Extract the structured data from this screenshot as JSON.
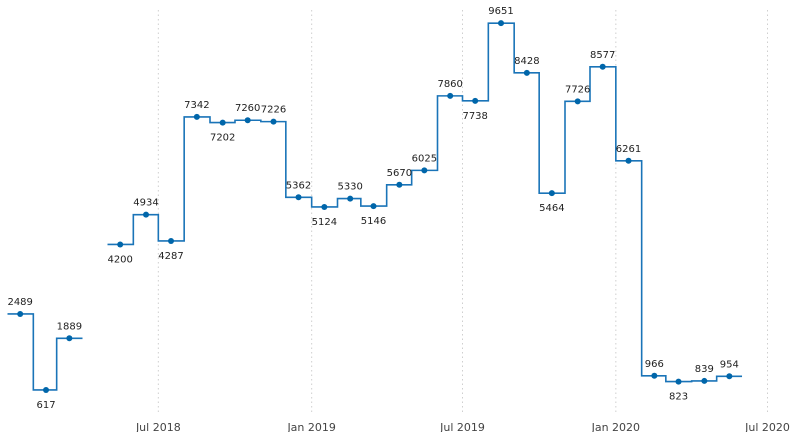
{
  "chart_data": {
    "type": "line",
    "step": true,
    "title": "",
    "xlabel": "",
    "ylabel": "",
    "grid": "vertical-dotted",
    "legend": "none",
    "series_color": "#1a74b8",
    "marker_color": "#0066aa",
    "x_ticks": [
      {
        "date": "2018-07-01",
        "label": "Jul 2018"
      },
      {
        "date": "2019-01-01",
        "label": "Jan 2019"
      },
      {
        "date": "2019-07-01",
        "label": "Jul 2019"
      },
      {
        "date": "2020-01-01",
        "label": "Jan 2020"
      },
      {
        "date": "2020-07-01",
        "label": "Jul 2020"
      }
    ],
    "xlim": [
      "2018-01-01",
      "2020-07-01"
    ],
    "ylim": [
      0,
      10000
    ],
    "points": [
      {
        "x": "2018-01-01",
        "y": 2489
      },
      {
        "x": "2018-02-01",
        "y": 617
      },
      {
        "x": "2018-03-01",
        "y": 1889
      },
      {
        "x": "2018-04-01",
        "y": null
      },
      {
        "x": "2018-05-01",
        "y": 4200
      },
      {
        "x": "2018-06-01",
        "y": 4934
      },
      {
        "x": "2018-07-01",
        "y": 4287
      },
      {
        "x": "2018-08-01",
        "y": 7342
      },
      {
        "x": "2018-09-01",
        "y": 7202
      },
      {
        "x": "2018-10-01",
        "y": 7260
      },
      {
        "x": "2018-11-01",
        "y": 7226
      },
      {
        "x": "2018-12-01",
        "y": 5362
      },
      {
        "x": "2019-01-01",
        "y": 5124
      },
      {
        "x": "2019-02-01",
        "y": 5330
      },
      {
        "x": "2019-03-01",
        "y": 5146
      },
      {
        "x": "2019-04-01",
        "y": 5670
      },
      {
        "x": "2019-05-01",
        "y": 6025
      },
      {
        "x": "2019-06-01",
        "y": 7860
      },
      {
        "x": "2019-07-01",
        "y": 7738
      },
      {
        "x": "2019-08-01",
        "y": 9651
      },
      {
        "x": "2019-09-01",
        "y": 8428
      },
      {
        "x": "2019-10-01",
        "y": 5464
      },
      {
        "x": "2019-11-01",
        "y": 7726
      },
      {
        "x": "2019-12-01",
        "y": 8577
      },
      {
        "x": "2020-01-01",
        "y": 6261
      },
      {
        "x": "2020-02-01",
        "y": 966
      },
      {
        "x": "2020-03-01",
        "y": 823
      },
      {
        "x": "2020-04-01",
        "y": 839
      },
      {
        "x": "2020-05-01",
        "y": 954
      }
    ]
  }
}
